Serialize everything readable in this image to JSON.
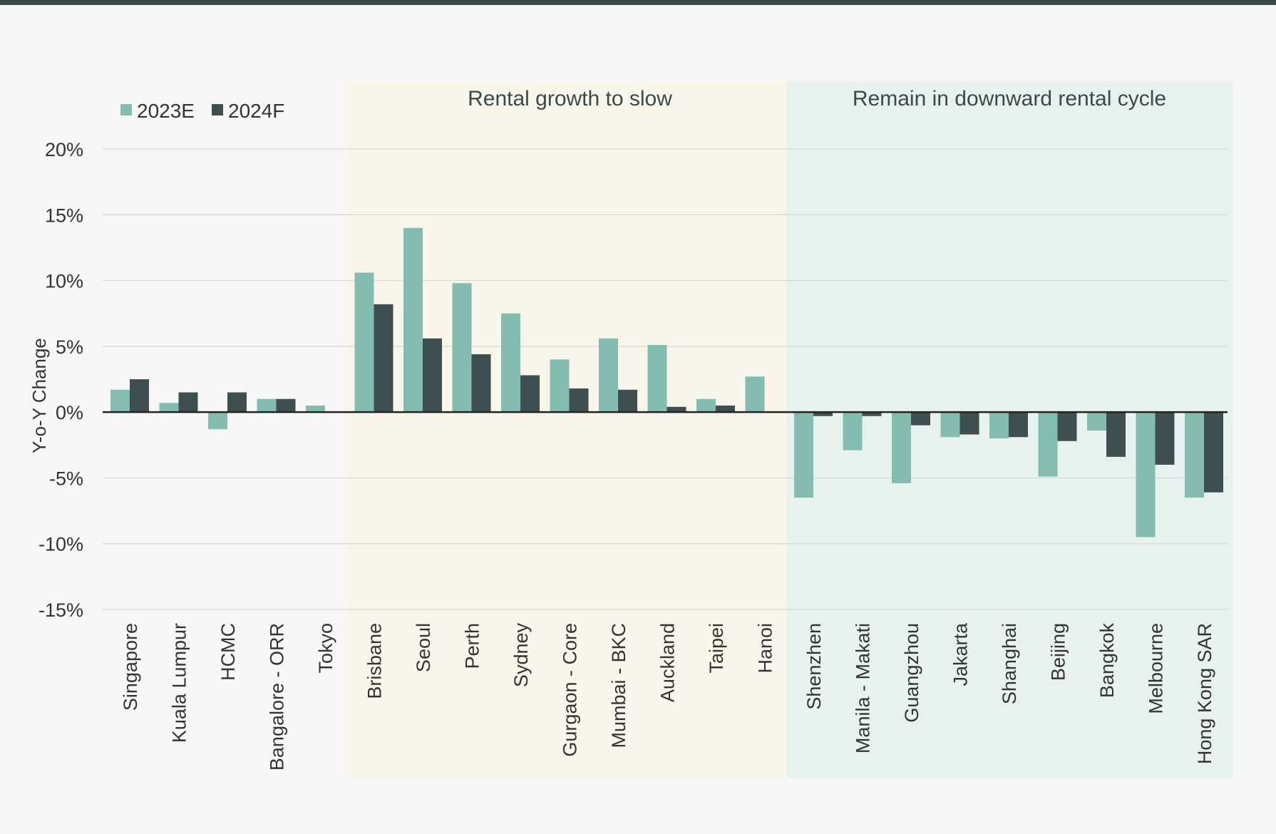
{
  "chart_data": {
    "type": "bar",
    "title": "",
    "ylabel": "Y-o-Y Change",
    "xlabel": "",
    "ylim": [
      -15,
      20
    ],
    "yticks": [
      20,
      15,
      10,
      5,
      0,
      -5,
      -10,
      -15
    ],
    "ytick_labels": [
      "20%",
      "15%",
      "10%",
      "5%",
      "0%",
      "-5%",
      "-10%",
      "-15%"
    ],
    "grid": true,
    "legend_position": "top-left",
    "categories": [
      "Singapore",
      "Kuala Lumpur",
      "HCMC",
      "Bangalore - ORR",
      "Tokyo",
      "Brisbane",
      "Seoul",
      "Perth",
      "Sydney",
      "Gurgaon - Core",
      "Mumbai - BKC",
      "Auckland",
      "Taipei",
      "Hanoi",
      "Shenzhen",
      "Manila - Makati",
      "Guangzhou",
      "Jakarta",
      "Shanghai",
      "Beijing",
      "Bangkok",
      "Melbourne",
      "Hong Kong SAR"
    ],
    "series": [
      {
        "name": "2023E",
        "color": "#84bcaf",
        "values": [
          1.7,
          0.7,
          -1.3,
          1.0,
          0.5,
          10.6,
          14.0,
          9.8,
          7.5,
          4.0,
          5.6,
          5.1,
          1.0,
          2.7,
          -6.5,
          -2.9,
          -5.4,
          -1.9,
          -2.0,
          -4.9,
          -1.4,
          -9.5,
          -6.5
        ]
      },
      {
        "name": "2024F",
        "color": "#3f4e4f",
        "values": [
          2.5,
          1.5,
          1.5,
          1.0,
          0.0,
          8.2,
          5.6,
          4.4,
          2.8,
          1.8,
          1.7,
          0.4,
          0.5,
          0.0,
          -0.3,
          -0.3,
          -1.0,
          -1.7,
          -1.9,
          -2.2,
          -3.4,
          -4.0,
          -6.1
        ]
      }
    ],
    "zones": [
      {
        "label": "Rental growth to slow",
        "from": "Brisbane",
        "to": "Hanoi",
        "color": "#f8f6ea"
      },
      {
        "label": "Remain in downward rental cycle",
        "from": "Shenzhen",
        "to": "Hong Kong SAR",
        "color": "#e7f1ee"
      }
    ]
  }
}
